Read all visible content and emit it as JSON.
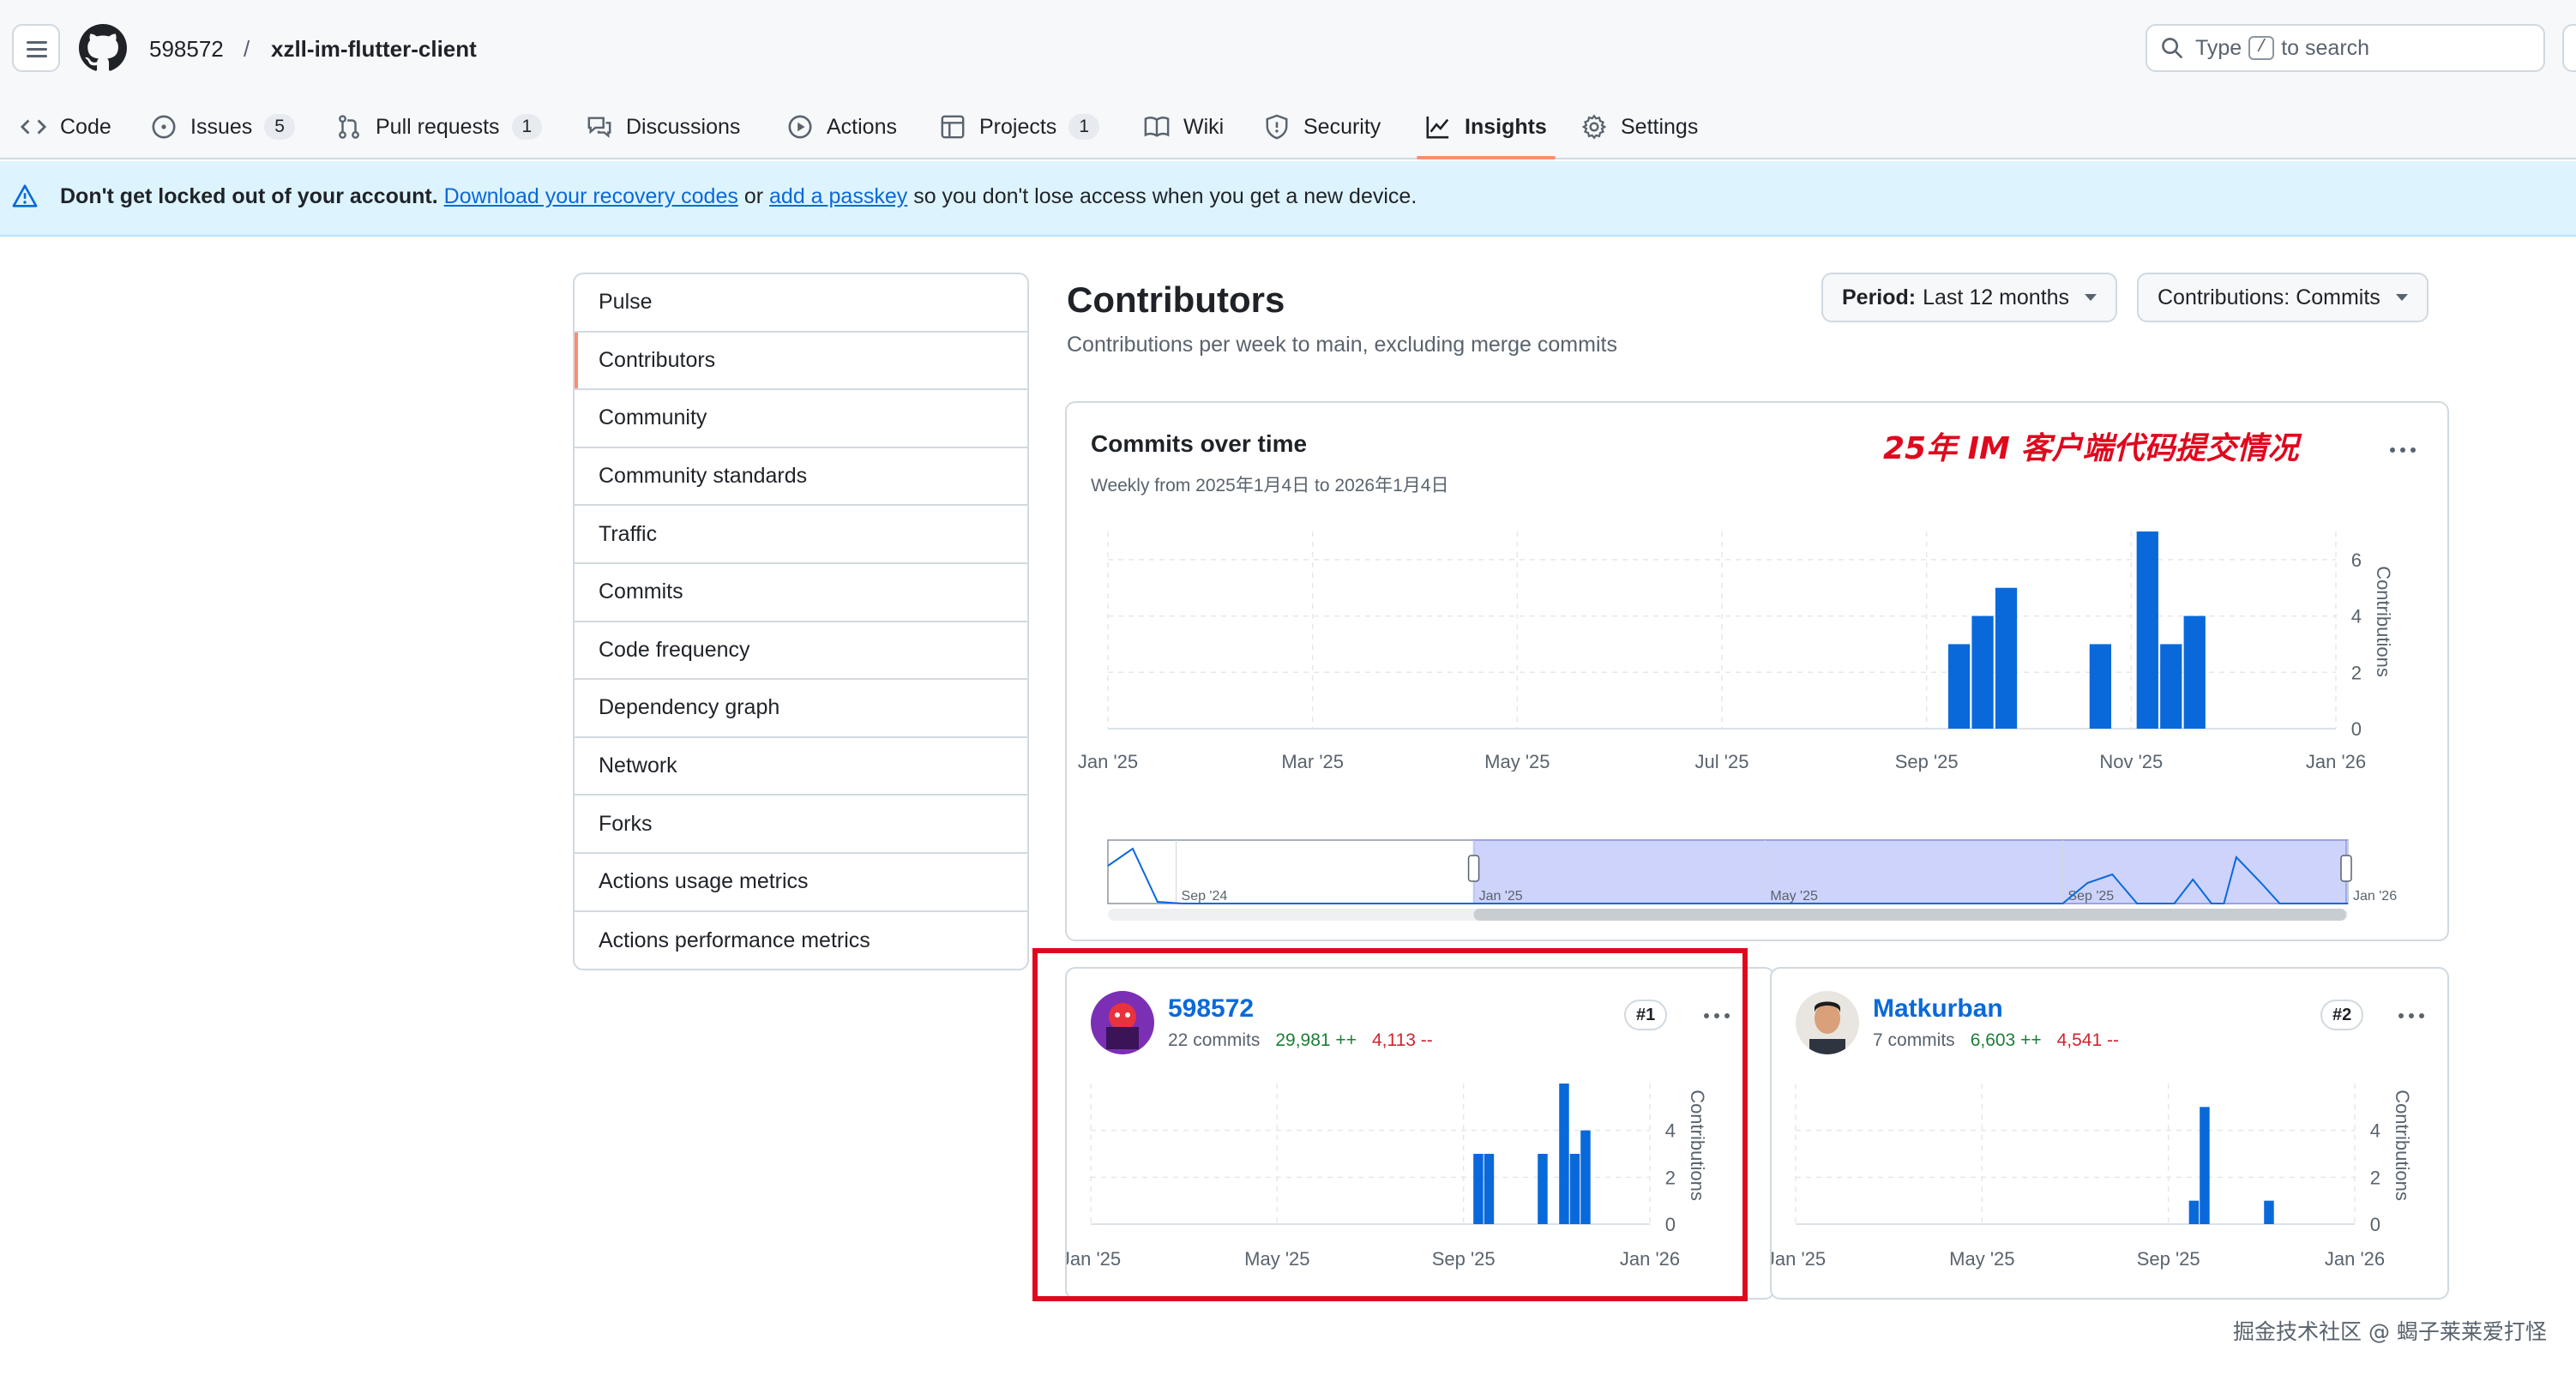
{
  "repo": {
    "owner": "598572",
    "separator": "/",
    "name": "xzll-im-flutter-client"
  },
  "search": {
    "prefix": "Type",
    "key": "/",
    "suffix": "to search"
  },
  "tabs": [
    {
      "label": "Code",
      "icon": "code-icon"
    },
    {
      "label": "Issues",
      "icon": "issue-icon",
      "count": "5"
    },
    {
      "label": "Pull requests",
      "icon": "pull-request-icon",
      "count": "1"
    },
    {
      "label": "Discussions",
      "icon": "discussion-icon"
    },
    {
      "label": "Actions",
      "icon": "play-icon"
    },
    {
      "label": "Projects",
      "icon": "table-icon",
      "count": "1"
    },
    {
      "label": "Wiki",
      "icon": "book-icon"
    },
    {
      "label": "Security",
      "icon": "shield-icon"
    },
    {
      "label": "Insights",
      "icon": "graph-icon",
      "active": true
    },
    {
      "label": "Settings",
      "icon": "gear-icon"
    }
  ],
  "banner": {
    "bold": "Don't get locked out of your account.",
    "link1": "Download your recovery codes",
    "mid": "or",
    "link2": "add a passkey",
    "tail": "so you don't lose access when you get a new device."
  },
  "sidebar": {
    "items": [
      "Pulse",
      "Contributors",
      "Community",
      "Community standards",
      "Traffic",
      "Commits",
      "Code frequency",
      "Dependency graph",
      "Network",
      "Forks",
      "Actions usage metrics",
      "Actions performance metrics"
    ],
    "selected": "Contributors"
  },
  "main": {
    "title": "Contributors",
    "subtitle": "Contributions per week to main, excluding merge commits",
    "period": {
      "label": "Period:",
      "value": "Last 12 months"
    },
    "contributions": {
      "label": "Contributions:",
      "value": "Commits"
    }
  },
  "overview": {
    "title": "Commits over time",
    "subtitle": "Weekly from 2025年1月4日 to 2026年1月4日",
    "annotation": "25年 IM 客户端代码提交情况"
  },
  "contributors": [
    {
      "name": "598572",
      "commits": "22 commits",
      "additions": "29,981 ++",
      "deletions": "4,113 --",
      "rank": "#1"
    },
    {
      "name": "Matkurban",
      "commits": "7 commits",
      "additions": "6,603 ++",
      "deletions": "4,541 --",
      "rank": "#2"
    }
  ],
  "chart_data": [
    {
      "type": "bar",
      "title": "Commits over time",
      "ylabel": "Contributions",
      "x_ticks": [
        "Jan '25",
        "Mar '25",
        "May '25",
        "Jul '25",
        "Sep '25",
        "Nov '25",
        "Jan '26"
      ],
      "y_ticks": [
        0,
        2,
        4,
        6
      ],
      "ylim": [
        0,
        7
      ],
      "grid": true,
      "x_range": [
        "2025-01-04",
        "2026-01-04"
      ],
      "x": [
        "2025-09-14",
        "2025-09-21",
        "2025-09-28",
        "2025-10-26",
        "2025-11-09",
        "2025-11-16",
        "2025-11-23"
      ],
      "values": [
        3,
        4,
        5,
        3,
        7,
        3,
        4
      ],
      "color": "#0969da",
      "brush": {
        "ticks": [
          "Sep '24",
          "Jan '25",
          "May '25",
          "Sep '25",
          "Jan '26"
        ],
        "selection": [
          "2025-01-04",
          "2026-01-04"
        ]
      }
    },
    {
      "type": "bar",
      "series_owner": "598572",
      "ylabel": "Contributions",
      "x_ticks": [
        "Jan '25",
        "May '25",
        "Sep '25",
        "Jan '26"
      ],
      "y_ticks": [
        0,
        2,
        4
      ],
      "ylim": [
        0,
        6
      ],
      "x_range": [
        "2025-01-04",
        "2026-01-04"
      ],
      "x": [
        "2025-09-14",
        "2025-09-21",
        "2025-10-26",
        "2025-11-09",
        "2025-11-16",
        "2025-11-23"
      ],
      "values": [
        3,
        3,
        3,
        6,
        3,
        4
      ],
      "color": "#0969da"
    },
    {
      "type": "bar",
      "series_owner": "Matkurban",
      "ylabel": "Contributions",
      "x_ticks": [
        "Jan '25",
        "May '25",
        "Sep '25",
        "Jan '26"
      ],
      "y_ticks": [
        0,
        2,
        4
      ],
      "ylim": [
        0,
        6
      ],
      "x_range": [
        "2025-01-04",
        "2026-01-04"
      ],
      "x": [
        "2025-09-21",
        "2025-09-28",
        "2025-11-09"
      ],
      "values": [
        1,
        5,
        1
      ],
      "color": "#0969da"
    }
  ],
  "watermark": "掘金技术社区 @ 蝎子莱莱爱打怪"
}
